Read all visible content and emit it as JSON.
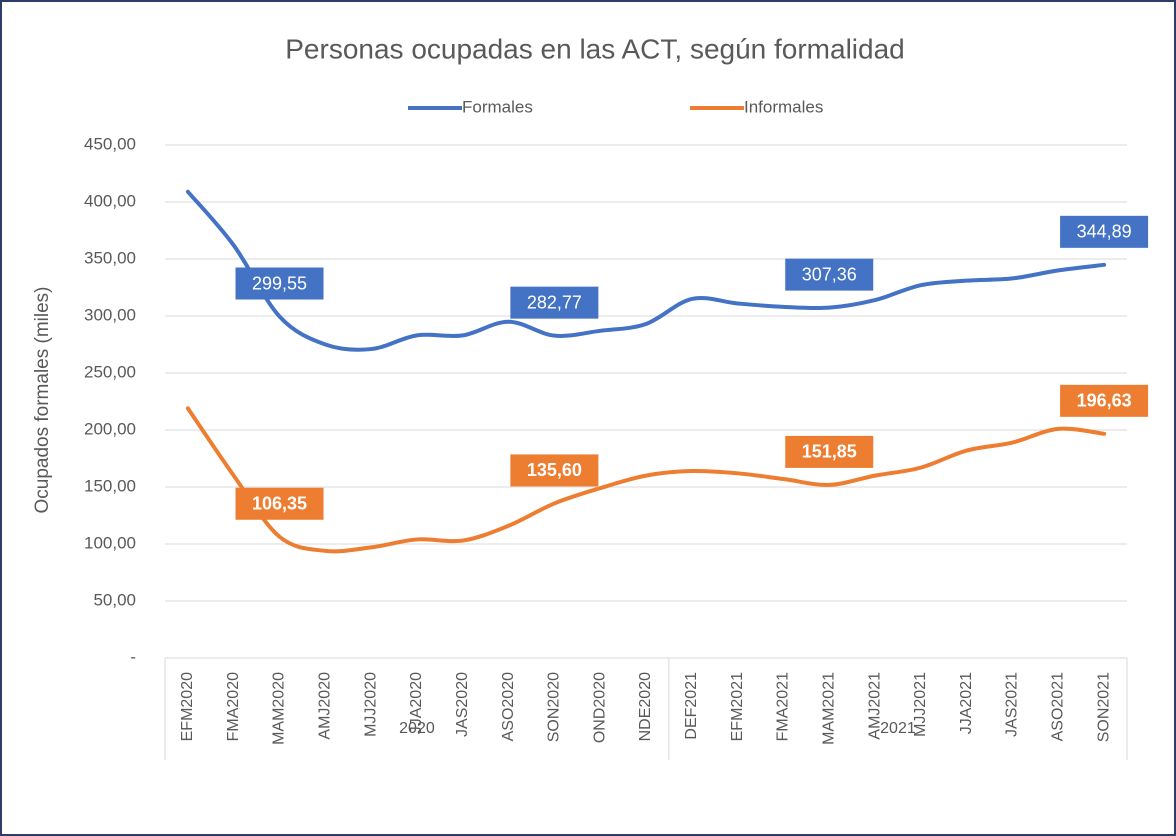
{
  "chart_data": {
    "type": "line",
    "title": "Personas ocupadas en las ACT, según formalidad",
    "y_label": "Ocupados formales (miles)",
    "categories": [
      "EFM2020",
      "FMA2020",
      "MAM2020",
      "AMJ2020",
      "MJJ2020",
      "JJA2020",
      "JAS2020",
      "ASO2020",
      "SON2020",
      "OND2020",
      "NDE2020",
      "DEF2021",
      "EFM2021",
      "FMA2021",
      "MAM2021",
      "AMJ2021",
      "MJJ2021",
      "JJA2021",
      "JAS2021",
      "ASO2021",
      "SON2021"
    ],
    "category_groups": [
      {
        "label": "2020",
        "count": 11
      },
      {
        "label": "2021",
        "count": 10
      }
    ],
    "series": [
      {
        "name": "Formales",
        "color": "#4472c4",
        "values": [
          409,
          362,
          299.55,
          275,
          271,
          283,
          283,
          295,
          282.77,
          287,
          293,
          315,
          311,
          308,
          307.36,
          314,
          327,
          331,
          333,
          340,
          344.89
        ],
        "value_labels": [
          null,
          null,
          "299,55",
          null,
          null,
          null,
          null,
          null,
          "282,77",
          null,
          null,
          null,
          null,
          null,
          "307,36",
          null,
          null,
          null,
          null,
          null,
          "344,89"
        ]
      },
      {
        "name": "Informales",
        "color": "#ed7d31",
        "values": [
          219,
          160,
          106.35,
          94,
          97,
          104,
          103,
          116,
          135.6,
          149,
          160,
          164,
          162,
          157,
          151.85,
          160,
          167,
          182,
          189,
          201,
          196.63
        ],
        "value_labels": [
          null,
          null,
          "106,35",
          null,
          null,
          null,
          null,
          null,
          "135,60",
          null,
          null,
          null,
          null,
          null,
          "151,85",
          null,
          null,
          null,
          null,
          null,
          "196,63"
        ]
      }
    ],
    "ylim": [
      0,
      450
    ],
    "yticks": [
      {
        "value": 0,
        "label": "-"
      },
      {
        "value": 50,
        "label": "50,00"
      },
      {
        "value": 100,
        "label": "100,00"
      },
      {
        "value": 150,
        "label": "150,00"
      },
      {
        "value": 200,
        "label": "200,00"
      },
      {
        "value": 250,
        "label": "250,00"
      },
      {
        "value": 300,
        "label": "300,00"
      },
      {
        "value": 350,
        "label": "350,00"
      },
      {
        "value": 400,
        "label": "400,00"
      },
      {
        "value": 450,
        "label": "450,00"
      }
    ],
    "grid": true,
    "legend": "top"
  }
}
